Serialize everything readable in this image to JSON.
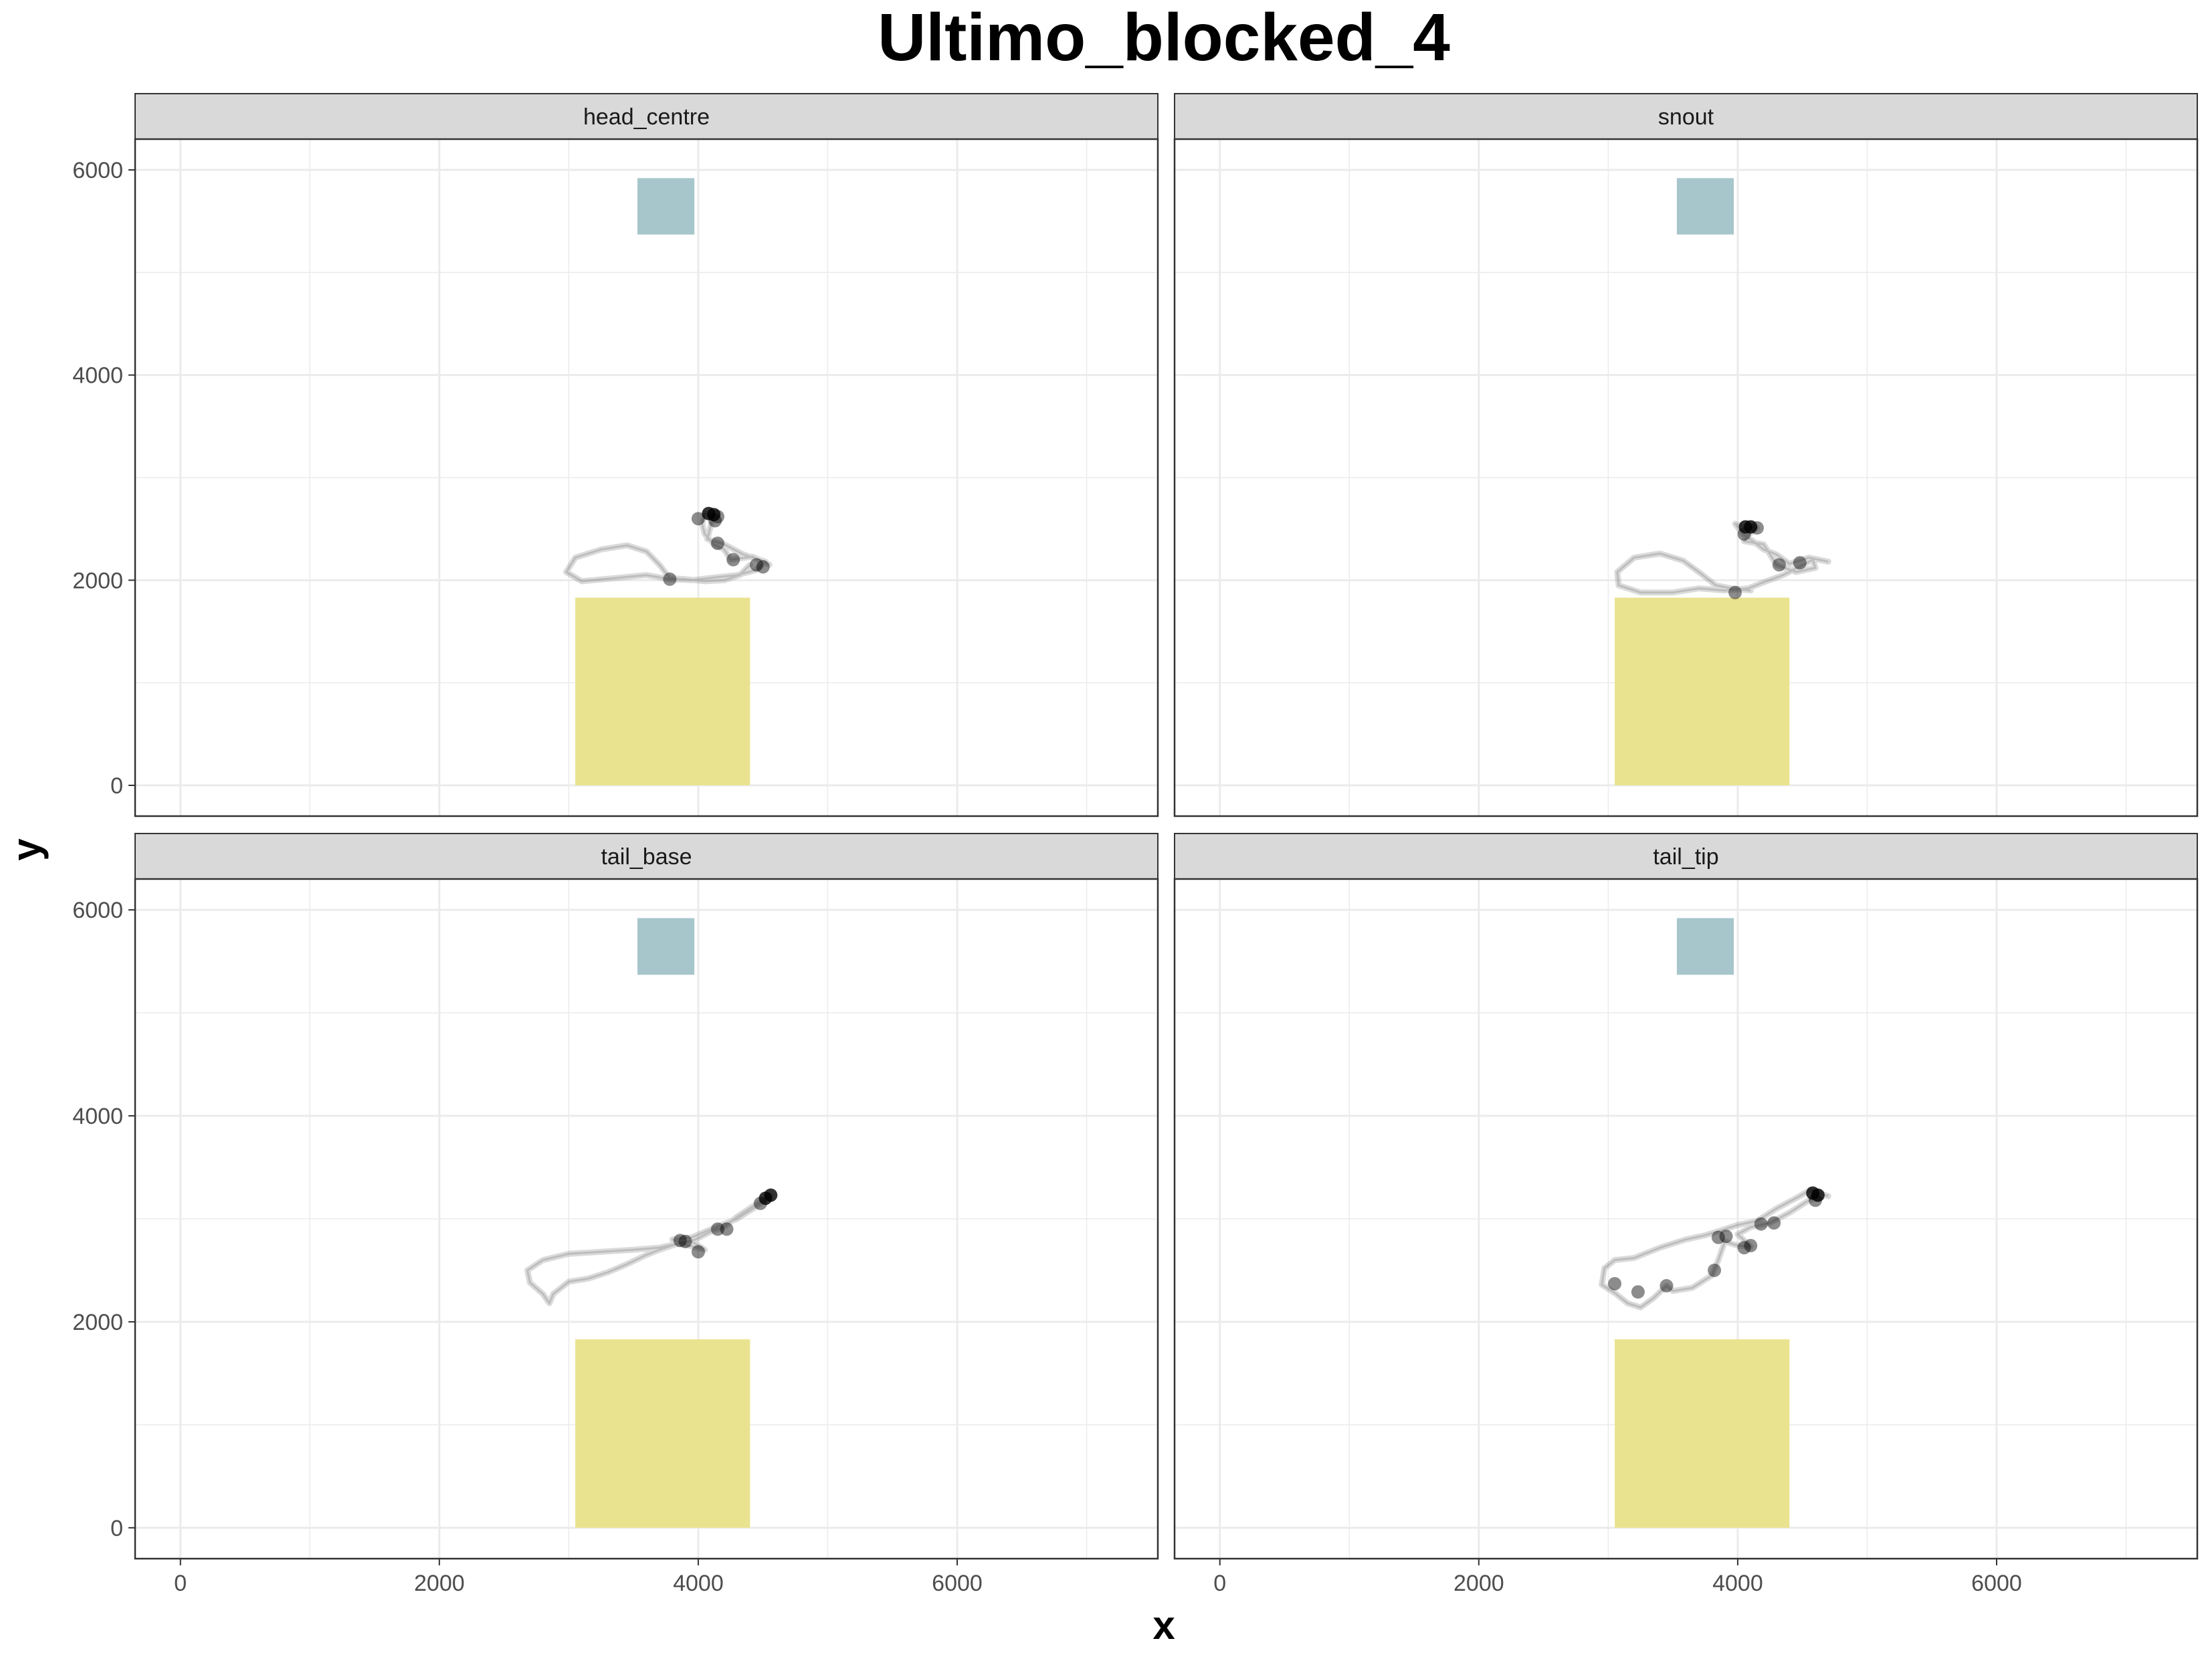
{
  "chart_data": {
    "type": "scatter",
    "title": "Ultimo_blocked_4",
    "xlabel": "x",
    "ylabel": "y",
    "xlim": [
      -350,
      7550
    ],
    "ylim": [
      -300,
      6300
    ],
    "x_ticks": [
      0,
      2000,
      4000,
      6000
    ],
    "y_ticks": [
      0,
      2000,
      4000,
      6000
    ],
    "grid": true,
    "layout": "2x2 facets, shared axes",
    "colors": {
      "target_zone": "#e9e390",
      "goal_zone": "#a7c6cc",
      "path": "#999999",
      "point": "#000000",
      "strip_bg": "#d9d9d9",
      "grid": "#ebebeb"
    },
    "zones": [
      {
        "x": [
          3050,
          4400
        ],
        "y": [
          0,
          1830
        ],
        "color": "#e9e390"
      },
      {
        "x": [
          3530,
          3970
        ],
        "y": [
          5370,
          5920
        ],
        "color": "#a7c6cc"
      }
    ],
    "panels": [
      {
        "label": "head_centre",
        "path": [
          [
            4550,
            2150
          ],
          [
            4420,
            2230
          ],
          [
            4250,
            2200
          ],
          [
            4200,
            2300
          ],
          [
            4120,
            2350
          ],
          [
            4050,
            2450
          ],
          [
            4030,
            2550
          ],
          [
            4050,
            2650
          ],
          [
            4120,
            2630
          ],
          [
            4100,
            2550
          ],
          [
            4070,
            2400
          ],
          [
            4200,
            2350
          ],
          [
            4350,
            2250
          ],
          [
            4520,
            2180
          ],
          [
            4450,
            2100
          ],
          [
            4300,
            2050
          ],
          [
            4150,
            2030
          ],
          [
            3950,
            2000
          ],
          [
            3780,
            2010
          ],
          [
            3600,
            2050
          ],
          [
            3350,
            2020
          ],
          [
            3100,
            1990
          ],
          [
            2980,
            2080
          ],
          [
            3050,
            2220
          ],
          [
            3250,
            2300
          ],
          [
            3450,
            2340
          ],
          [
            3600,
            2280
          ],
          [
            3700,
            2150
          ],
          [
            3780,
            2020
          ],
          [
            3900,
            2010
          ],
          [
            4050,
            1990
          ],
          [
            4200,
            2000
          ],
          [
            4320,
            2050
          ],
          [
            4400,
            2150
          ]
        ],
        "points": [
          [
            4120,
            2640
          ],
          [
            4080,
            2650
          ],
          [
            4150,
            2620
          ],
          [
            4130,
            2580
          ],
          [
            3780,
            2010
          ],
          [
            4270,
            2200
          ],
          [
            4450,
            2150
          ],
          [
            4500,
            2130
          ],
          [
            4000,
            2600
          ],
          [
            4150,
            2360
          ]
        ]
      },
      {
        "label": "snout",
        "path": [
          [
            4700,
            2180
          ],
          [
            4550,
            2220
          ],
          [
            4400,
            2160
          ],
          [
            4300,
            2250
          ],
          [
            4200,
            2300
          ],
          [
            4120,
            2380
          ],
          [
            4040,
            2450
          ],
          [
            3980,
            2550
          ],
          [
            4050,
            2520
          ],
          [
            4150,
            2510
          ],
          [
            4080,
            2440
          ],
          [
            4050,
            2380
          ],
          [
            4200,
            2350
          ],
          [
            4300,
            2150
          ],
          [
            4450,
            2080
          ],
          [
            4600,
            2120
          ],
          [
            4580,
            2200
          ],
          [
            4350,
            2050
          ],
          [
            4200,
            1980
          ],
          [
            4080,
            1920
          ],
          [
            3900,
            1900
          ],
          [
            3700,
            1920
          ],
          [
            3500,
            1880
          ],
          [
            3250,
            1880
          ],
          [
            3080,
            1950
          ],
          [
            3070,
            2080
          ],
          [
            3200,
            2220
          ],
          [
            3400,
            2260
          ],
          [
            3580,
            2190
          ],
          [
            3720,
            2060
          ],
          [
            3830,
            1950
          ],
          [
            3950,
            1920
          ],
          [
            4100,
            1900
          ]
        ],
        "points": [
          [
            4060,
            2520
          ],
          [
            4100,
            2520
          ],
          [
            4150,
            2510
          ],
          [
            3980,
            1880
          ],
          [
            4320,
            2150
          ],
          [
            4050,
            2450
          ],
          [
            4480,
            2170
          ]
        ]
      },
      {
        "label": "tail_base",
        "path": [
          [
            4560,
            3230
          ],
          [
            4500,
            3180
          ],
          [
            4420,
            3120
          ],
          [
            4300,
            3020
          ],
          [
            4200,
            2920
          ],
          [
            4100,
            2880
          ],
          [
            3980,
            2800
          ],
          [
            3880,
            2770
          ],
          [
            3820,
            2750
          ],
          [
            3700,
            2700
          ],
          [
            3600,
            2650
          ],
          [
            3450,
            2560
          ],
          [
            3300,
            2480
          ],
          [
            3150,
            2420
          ],
          [
            3000,
            2390
          ],
          [
            2880,
            2270
          ],
          [
            2850,
            2180
          ],
          [
            2800,
            2270
          ],
          [
            2700,
            2380
          ],
          [
            2680,
            2500
          ],
          [
            2800,
            2600
          ],
          [
            3000,
            2660
          ],
          [
            3250,
            2680
          ],
          [
            3500,
            2700
          ],
          [
            3700,
            2720
          ],
          [
            3850,
            2760
          ],
          [
            3950,
            2780
          ],
          [
            4050,
            2700
          ],
          [
            3900,
            2750
          ],
          [
            3800,
            2800
          ],
          [
            3950,
            2820
          ],
          [
            4100,
            2900
          ],
          [
            4300,
            3000
          ],
          [
            4450,
            3120
          ],
          [
            4530,
            3200
          ]
        ],
        "points": [
          [
            4560,
            3230
          ],
          [
            4520,
            3200
          ],
          [
            4480,
            3150
          ],
          [
            3900,
            2780
          ],
          [
            3860,
            2790
          ],
          [
            4000,
            2680
          ],
          [
            4150,
            2900
          ],
          [
            4220,
            2900
          ]
        ]
      },
      {
        "label": "tail_tip",
        "path": [
          [
            4700,
            3220
          ],
          [
            4560,
            3280
          ],
          [
            4450,
            3200
          ],
          [
            4300,
            3100
          ],
          [
            4150,
            2980
          ],
          [
            4000,
            2940
          ],
          [
            3850,
            2880
          ],
          [
            3750,
            2840
          ],
          [
            3600,
            2800
          ],
          [
            3400,
            2720
          ],
          [
            3200,
            2620
          ],
          [
            3050,
            2600
          ],
          [
            2970,
            2520
          ],
          [
            2950,
            2360
          ],
          [
            3050,
            2280
          ],
          [
            3150,
            2180
          ],
          [
            3250,
            2140
          ],
          [
            3350,
            2230
          ],
          [
            3450,
            2350
          ],
          [
            3500,
            2300
          ],
          [
            3650,
            2330
          ],
          [
            3800,
            2450
          ],
          [
            3850,
            2600
          ],
          [
            3900,
            2780
          ],
          [
            4000,
            2740
          ],
          [
            4100,
            2730
          ],
          [
            4000,
            2850
          ],
          [
            4100,
            2920
          ],
          [
            4250,
            2960
          ],
          [
            4400,
            3060
          ],
          [
            4550,
            3180
          ],
          [
            4650,
            3210
          ]
        ],
        "points": [
          [
            4580,
            3250
          ],
          [
            4620,
            3230
          ],
          [
            4600,
            3180
          ],
          [
            3850,
            2820
          ],
          [
            3910,
            2830
          ],
          [
            4050,
            2720
          ],
          [
            4100,
            2740
          ],
          [
            4280,
            2960
          ],
          [
            4180,
            2950
          ],
          [
            3820,
            2500
          ],
          [
            3450,
            2350
          ],
          [
            3230,
            2290
          ],
          [
            3050,
            2370
          ]
        ]
      }
    ]
  }
}
